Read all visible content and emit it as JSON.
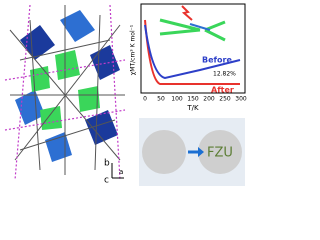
{
  "plot": {
    "x_label": "T/K",
    "y_label": "χMT/cm³ K mol⁻¹",
    "xticks": [
      "0",
      "50",
      "100",
      "150",
      "200",
      "250",
      "300"
    ],
    "curves": {
      "before": "Before",
      "after": "After",
      "change": "12.82%"
    }
  },
  "photo": {
    "text": "FZU"
  },
  "structure": {
    "axes": [
      "b",
      "c",
      "a"
    ]
  }
}
